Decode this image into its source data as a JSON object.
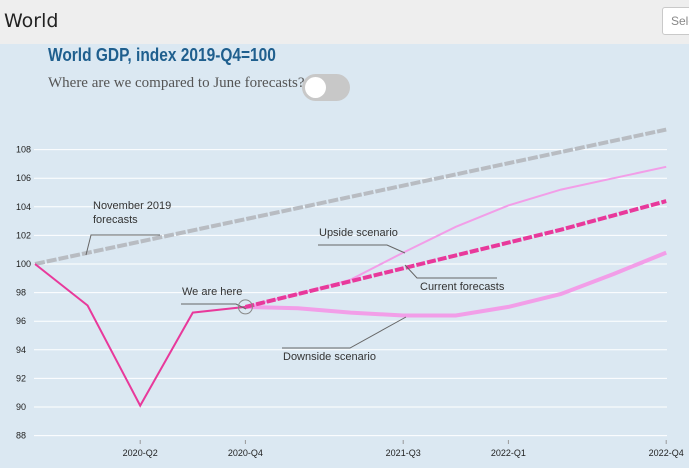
{
  "header": {
    "region": "World",
    "select_placeholder": "Select"
  },
  "chart_data": {
    "type": "line",
    "title": "World GDP, index 2019-Q4=100",
    "toggle_question": "Where are we compared to June forecasts?",
    "toggle_on": false,
    "x_ticks": [
      "2020-Q2",
      "2020-Q4",
      "2021-Q3",
      "2022-Q1",
      "2022-Q4"
    ],
    "ylim": [
      88,
      109
    ],
    "y_ticks": [
      88,
      90,
      92,
      94,
      96,
      98,
      100,
      102,
      104,
      106,
      108
    ],
    "grid": true,
    "series": [
      {
        "name": "November 2019 forecasts",
        "color": "#b8bcc2",
        "style": "dashed",
        "points": [
          [
            "2019-Q4",
            100.0
          ],
          [
            "2022-Q4",
            109.4
          ]
        ]
      },
      {
        "name": "",
        "color": "#e8399b",
        "style": "solid",
        "points": [
          [
            "2019-Q4",
            100.0
          ],
          [
            "2020-Q1",
            97.1
          ],
          [
            "2020-Q2",
            90.1
          ],
          [
            "2020-Q3",
            96.6
          ],
          [
            "2020-Q4",
            97.0
          ]
        ]
      },
      {
        "name": "Current forecasts",
        "color": "#e8399b",
        "style": "dashed",
        "points": [
          [
            "2020-Q4",
            97.0
          ],
          [
            "2021-Q1",
            97.9
          ],
          [
            "2021-Q2",
            98.8
          ],
          [
            "2021-Q3",
            99.7
          ],
          [
            "2021-Q4",
            100.6
          ],
          [
            "2022-Q1",
            101.5
          ],
          [
            "2022-Q2",
            102.4
          ],
          [
            "2022-Q3",
            103.4
          ],
          [
            "2022-Q4",
            104.4
          ]
        ]
      },
      {
        "name": "Upside scenario",
        "color": "#f29ee8",
        "style": "solid",
        "points": [
          [
            "2020-Q4",
            97.0
          ],
          [
            "2021-Q1",
            97.9
          ],
          [
            "2021-Q2",
            98.9
          ],
          [
            "2021-Q3",
            100.8
          ],
          [
            "2021-Q4",
            102.6
          ],
          [
            "2022-Q1",
            104.1
          ],
          [
            "2022-Q2",
            105.2
          ],
          [
            "2022-Q3",
            106.0
          ],
          [
            "2022-Q4",
            106.8
          ]
        ]
      },
      {
        "name": "Downside scenario",
        "color": "#f29ee8",
        "style": "solid",
        "points": [
          [
            "2020-Q4",
            97.0
          ],
          [
            "2021-Q1",
            96.9
          ],
          [
            "2021-Q2",
            96.6
          ],
          [
            "2021-Q3",
            96.4
          ],
          [
            "2021-Q4",
            96.4
          ],
          [
            "2022-Q1",
            97.0
          ],
          [
            "2022-Q2",
            97.9
          ],
          [
            "2022-Q3",
            99.3
          ],
          [
            "2022-Q4",
            100.8
          ]
        ]
      }
    ],
    "annotations": {
      "nov_line1": "November 2019",
      "nov_line2": "forecasts",
      "upside": "Upside scenario",
      "current": "Current forecasts",
      "here": "We are here",
      "downside": "Downside scenario"
    }
  }
}
